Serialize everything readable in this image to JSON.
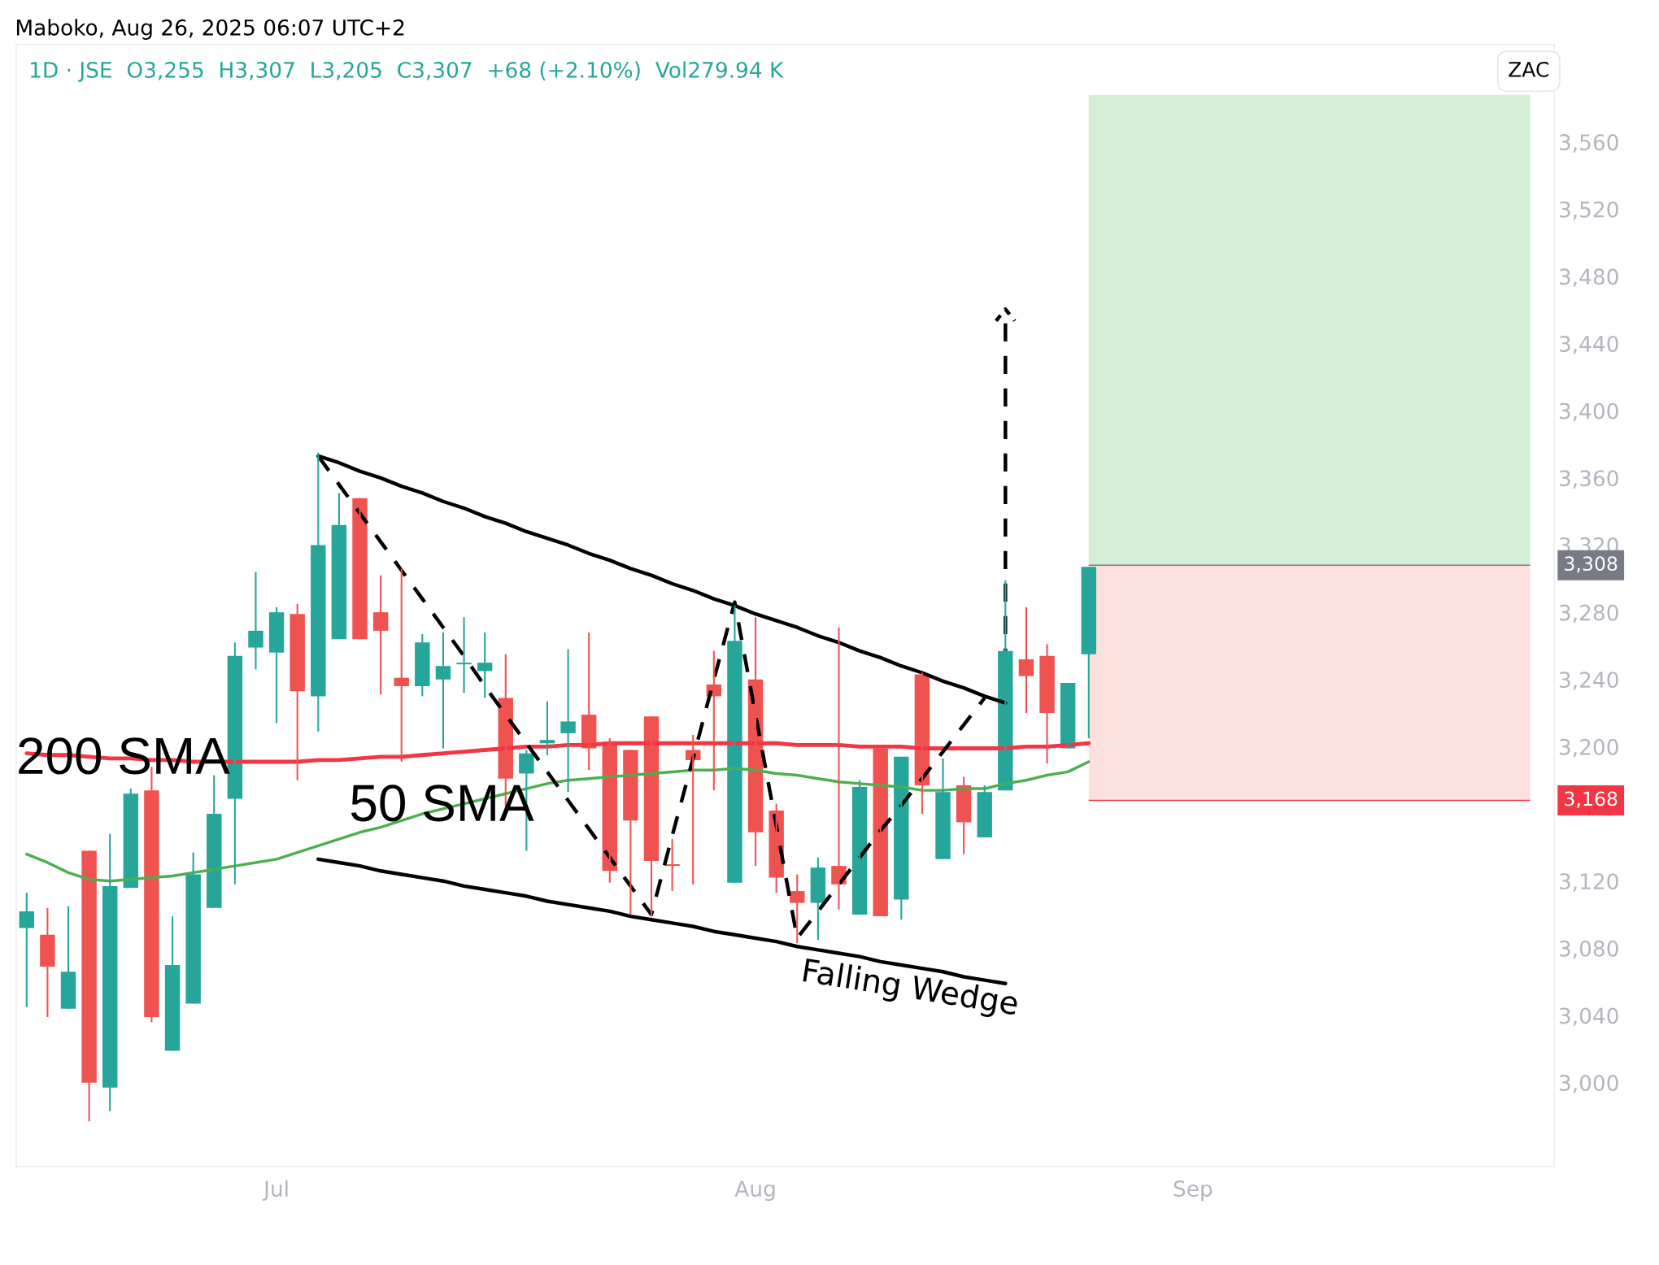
{
  "chart_data": {
    "type": "candlestick",
    "title": "Maboko, Aug 26, 2025 06:07 UTC+2",
    "subtitle": "1D · JSE  O3,255  H3,307  L3,205  C3,307  +68 (+2.10%)  Vol279.94 K",
    "categories": [
      null,
      null,
      null,
      null,
      null,
      null,
      null,
      null,
      null,
      null,
      null,
      null,
      "Jul",
      null,
      null,
      null,
      null,
      null,
      null,
      null,
      null,
      null,
      null,
      null,
      null,
      null,
      null,
      null,
      null,
      null,
      null,
      null,
      null,
      null,
      null,
      "Aug",
      null,
      null,
      null,
      null,
      null,
      null,
      null,
      null,
      null,
      null,
      null,
      null,
      null,
      null,
      null,
      null,
      null,
      null,
      null,
      null,
      "Sep",
      null,
      null,
      null,
      null,
      null,
      null,
      null,
      null,
      null,
      null,
      null,
      null,
      null,
      null,
      null,
      null,
      null
    ],
    "ohlc": [
      [
        3092,
        3113,
        3045,
        3102
      ],
      [
        3088,
        3104,
        3039,
        3069
      ],
      [
        3044,
        3105,
        3044,
        3066
      ],
      [
        3138,
        3138,
        2977,
        3000
      ],
      [
        2997,
        3148,
        2983,
        3117
      ],
      [
        3116,
        3175,
        3116,
        3172
      ],
      [
        3174,
        3188,
        3036,
        3039
      ],
      [
        3019,
        3099,
        3019,
        3070
      ],
      [
        3047,
        3137,
        3047,
        3124
      ],
      [
        3104,
        3183,
        3104,
        3160
      ],
      [
        3169,
        3262,
        3118,
        3254
      ],
      [
        3259,
        3304,
        3246,
        3269
      ],
      [
        3256,
        3283,
        3214,
        3280
      ],
      [
        3279,
        3285,
        3180,
        3233
      ],
      [
        3230,
        3375,
        3209,
        3320
      ],
      [
        3264,
        3351,
        3264,
        3332
      ],
      [
        3348,
        3348,
        3264,
        3264
      ],
      [
        3280,
        3302,
        3231,
        3269
      ],
      [
        3241,
        3306,
        3191,
        3236
      ],
      [
        3236,
        3267,
        3230,
        3262
      ],
      [
        3240,
        3268,
        3199,
        3248
      ],
      [
        3249,
        3277,
        3232,
        3250
      ],
      [
        3245,
        3268,
        3229,
        3250
      ],
      [
        3229,
        3255,
        3164,
        3181
      ],
      [
        3184,
        3198,
        3138,
        3196
      ],
      [
        3202,
        3227,
        3195,
        3204
      ],
      [
        3208,
        3258,
        3173,
        3215
      ],
      [
        3219,
        3268,
        3186,
        3199
      ],
      [
        3203,
        3205,
        3119,
        3126
      ],
      [
        3198,
        3198,
        3100,
        3156
      ],
      [
        3218,
        3218,
        3099,
        3132
      ],
      [
        3130,
        3145,
        3114,
        3129
      ],
      [
        3198,
        3207,
        3118,
        3192
      ],
      [
        3237,
        3257,
        3174,
        3230
      ],
      [
        3119,
        3284,
        3119,
        3263
      ],
      [
        3240,
        3277,
        3129,
        3149
      ],
      [
        3162,
        3166,
        3113,
        3122
      ],
      [
        3114,
        3124,
        3083,
        3107
      ],
      [
        3107,
        3134,
        3085,
        3128
      ],
      [
        3129,
        3271,
        3103,
        3118
      ],
      [
        3100,
        3180,
        3100,
        3176
      ],
      [
        3199,
        3199,
        3099,
        3099
      ],
      [
        3109,
        3194,
        3097,
        3194
      ],
      [
        3243,
        3244,
        3160,
        3177
      ],
      [
        3133,
        3193,
        3133,
        3173
      ],
      [
        3177,
        3182,
        3136,
        3155
      ],
      [
        3146,
        3177,
        3146,
        3173
      ],
      [
        3174,
        3299,
        3174,
        3257
      ],
      [
        3252,
        3283,
        3220,
        3242
      ],
      [
        3254,
        3261,
        3190,
        3220
      ],
      [
        3199,
        3238,
        3199,
        3238
      ],
      [
        3255,
        3307,
        3205,
        3307
      ],
      null,
      null,
      null,
      null,
      null,
      null,
      null,
      null,
      null,
      null,
      null,
      null,
      null,
      null,
      null,
      null,
      null,
      null,
      null,
      null,
      null,
      null
    ],
    "colors": [
      "#26a69a",
      "#ef5350",
      "#26a69a",
      "#ef5350",
      "#26a69a",
      "#26a69a",
      "#ef5350",
      "#26a69a",
      "#26a69a",
      "#26a69a",
      "#26a69a",
      "#26a69a",
      "#26a69a",
      "#ef5350",
      "#26a69a",
      "#26a69a",
      "#ef5350",
      "#ef5350",
      "#ef5350",
      "#26a69a",
      "#26a69a",
      "#26a69a",
      "#26a69a",
      "#ef5350",
      "#26a69a",
      "#26a69a",
      "#26a69a",
      "#ef5350",
      "#ef5350",
      "#ef5350",
      "#ef5350",
      "#ef5350",
      "#ef5350",
      "#ef5350",
      "#26a69a",
      "#ef5350",
      "#ef5350",
      "#ef5350",
      "#26a69a",
      "#ef5350",
      "#26a69a",
      "#ef5350",
      "#26a69a",
      "#ef5350",
      "#26a69a",
      "#ef5350",
      "#26a69a",
      "#26a69a",
      "#ef5350",
      "#ef5350",
      "#26a69a",
      "#26a69a",
      null,
      null,
      null,
      null,
      null,
      null,
      null,
      null,
      null,
      null,
      null,
      null,
      null,
      null,
      null,
      null,
      null,
      null,
      null,
      null,
      null,
      null
    ],
    "series": [
      {
        "type": "line",
        "color": "#f23645",
        "values": [
          3196,
          3195,
          3195,
          3194,
          3193,
          3193,
          3192,
          3192,
          3191,
          3191,
          3191,
          3191,
          3191,
          3191,
          3192,
          3192,
          3193,
          3194,
          3194,
          3195,
          3196,
          3197,
          3198,
          3199,
          3200,
          3200,
          3201,
          3201,
          3202,
          3202,
          3202,
          3202,
          3202,
          3202,
          3202,
          3202,
          3202,
          3201,
          3201,
          3201,
          3200,
          3200,
          3200,
          3199,
          3199,
          3199,
          3199,
          3199,
          3200,
          3200,
          3201,
          3202,
          null,
          null,
          null,
          null,
          null,
          null,
          null,
          null,
          null,
          null,
          null,
          null,
          null,
          null,
          null,
          null,
          null,
          null,
          null,
          null,
          null,
          null
        ]
      },
      {
        "type": "line",
        "color": "#4caf50",
        "values": [
          3136,
          3131,
          3125,
          3121,
          3120,
          3121,
          3122,
          3123,
          3125,
          3127,
          3129,
          3131,
          3133,
          3137,
          3141,
          3145,
          3149,
          3152,
          3156,
          3160,
          3163,
          3166,
          3169,
          3172,
          3175,
          3178,
          3180,
          3181,
          3182,
          3183,
          3184,
          3185,
          3186,
          3186,
          3187,
          3186,
          3184,
          3183,
          3181,
          3179,
          3178,
          3177,
          3176,
          3174,
          3174,
          3175,
          3175,
          3178,
          3180,
          3183,
          3185,
          3191,
          null,
          null,
          null,
          null,
          null,
          null,
          null,
          null,
          null,
          null,
          null,
          null,
          null,
          null,
          null,
          null,
          null,
          null,
          null,
          null,
          null,
          null
        ]
      },
      {
        "type": "line",
        "color": "#000000",
        "values": [
          null,
          null,
          null,
          null,
          null,
          null,
          null,
          null,
          null,
          null,
          null,
          null,
          null,
          null,
          3373,
          3369,
          3364,
          3360,
          3355,
          3351,
          3346,
          3342,
          3337,
          3333,
          3328,
          3324,
          3320,
          3315,
          3311,
          3306,
          3302,
          3297,
          3293,
          3288,
          3284,
          3279,
          3275,
          3271,
          3266,
          3262,
          3257,
          3253,
          3248,
          3244,
          3239,
          3235,
          3230,
          3226,
          null,
          null,
          null,
          null,
          null,
          null,
          null,
          null,
          null,
          null,
          null,
          null,
          null,
          null,
          null,
          null,
          null,
          null,
          null,
          null,
          null,
          null,
          null,
          null,
          null,
          null
        ]
      },
      {
        "type": "line",
        "color": "#000000",
        "values": [
          null,
          null,
          null,
          null,
          null,
          null,
          null,
          null,
          null,
          null,
          null,
          null,
          null,
          null,
          3133,
          3131,
          3129,
          3126,
          3124,
          3122,
          3120,
          3117,
          3115,
          3113,
          3111,
          3108,
          3106,
          3104,
          3102,
          3099,
          3097,
          3095,
          3093,
          3090,
          3088,
          3086,
          3084,
          3081,
          3079,
          3077,
          3075,
          3072,
          3070,
          3068,
          3066,
          3063,
          3061,
          3059,
          null,
          null,
          null,
          null,
          null,
          null,
          null,
          null,
          null,
          null,
          null,
          null,
          null,
          null,
          null,
          null,
          null,
          null,
          null,
          null,
          null,
          null,
          null,
          null,
          null,
          null
        ]
      },
      {
        "type": "line",
        "color": "#000000",
        "line_style": "dashed",
        "values": [
          null,
          null,
          null,
          null,
          null,
          null,
          null,
          null,
          null,
          null,
          null,
          null,
          null,
          null,
          3373,
          3356,
          3339,
          3322,
          3305,
          3288,
          3271,
          3254,
          3236,
          3219,
          3202,
          3185,
          3168,
          3151,
          3134,
          3117,
          3100,
          3147,
          3193,
          3240,
          3286,
          3219,
          3153,
          3086,
          3102,
          3118,
          3134,
          3150,
          3165,
          3181,
          3197,
          3213,
          3229,
          null,
          null,
          null,
          null,
          null,
          null,
          null,
          null,
          null,
          null,
          null,
          null,
          null,
          null,
          null,
          null,
          null,
          null,
          null,
          null,
          null,
          null,
          null,
          null,
          null,
          null,
          null
        ]
      }
    ],
    "bands": [
      {
        "axis": "y",
        "from": 3308,
        "to": 3588,
        "color": "#d4eed6"
      },
      {
        "axis": "y",
        "from": 3168,
        "to": 3308,
        "color": "#fce0de"
      }
    ],
    "ref_lines": [
      {
        "axis": "y",
        "value": 3308,
        "label": "3,308",
        "color": "#787b86"
      },
      {
        "axis": "y",
        "value": 3168,
        "label": "3,168",
        "color": "#f23645"
      }
    ],
    "annotations": [
      "200 SMA",
      "50 SMA",
      "Falling Wedge",
      "ZAC"
    ],
    "ylim": [
      2950,
      3618
    ],
    "yticks": [
      {
        "value": 3000,
        "label": "3,000"
      },
      {
        "value": 3040,
        "label": "3,040"
      },
      {
        "value": 3080,
        "label": "3,080"
      },
      {
        "value": 3120,
        "label": "3,120"
      },
      {
        "value": 3200,
        "label": "3,200"
      },
      {
        "value": 3240,
        "label": "3,240"
      },
      {
        "value": 3280,
        "label": "3,280"
      },
      {
        "value": 3320,
        "label": "3,320"
      },
      {
        "value": 3360,
        "label": "3,360"
      },
      {
        "value": 3400,
        "label": "3,400"
      },
      {
        "value": 3440,
        "label": "3,440"
      },
      {
        "value": 3480,
        "label": "3,480"
      },
      {
        "value": 3520,
        "label": "3,520"
      },
      {
        "value": 3560,
        "label": "3,560"
      }
    ],
    "grid": false
  }
}
